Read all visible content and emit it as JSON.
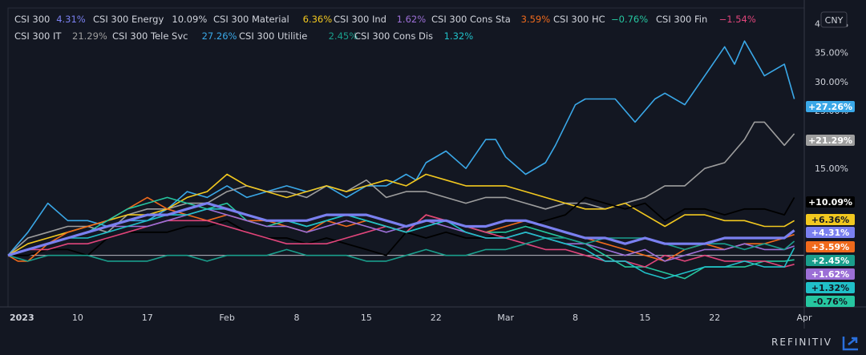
{
  "chart_data": {
    "type": "line",
    "currency_button": "CNY",
    "y_ticks": [
      40,
      35,
      30,
      25,
      20,
      15
    ],
    "y_tick_labels": [
      "40.00%",
      "35.00%",
      "30.00%",
      "25.00%",
      "20.00%",
      "15.00%"
    ],
    "ylim": [
      -8.9,
      42.7
    ],
    "x_ticks": [
      {
        "label": "2023",
        "x": 0,
        "bold": true
      },
      {
        "label": "10",
        "x": 7
      },
      {
        "label": "17",
        "x": 14
      },
      {
        "label": "Feb",
        "x": 22
      },
      {
        "label": "8",
        "x": 29
      },
      {
        "label": "15",
        "x": 36
      },
      {
        "label": "22",
        "x": 43
      },
      {
        "label": "Mar",
        "x": 50
      },
      {
        "label": "8",
        "x": 57
      },
      {
        "label": "15",
        "x": 64
      },
      {
        "label": "22",
        "x": 71
      },
      {
        "label": "Apr",
        "x": 80
      }
    ],
    "xlim": [
      0,
      80
    ],
    "legend": [
      {
        "name": "CSI 300",
        "value": "4.31%",
        "color": "#7a80f0"
      },
      {
        "name": "CSI 300 Energy",
        "value": "10.09%",
        "color": "#d1d4dc"
      },
      {
        "name": "CSI 300 Material",
        "value": "6.36%",
        "color": "#f2c81f"
      },
      {
        "name": "CSI 300 Ind",
        "value": "1.62%",
        "color": "#9c6fd6"
      },
      {
        "name": "CSI 300 Cons Sta",
        "value": "3.59%",
        "color": "#f06a1c"
      },
      {
        "name": "CSI 300 HC",
        "value": "−0.76%",
        "color": "#26c6a0"
      },
      {
        "name": "CSI 300 Fin",
        "value": "−1.54%",
        "color": "#e0457b"
      },
      {
        "name": "CSI 300 IT",
        "value": "21.29%",
        "color": "#9e9e9e"
      },
      {
        "name": "CSI 300 Tele Svc",
        "value": "27.26%",
        "color": "#3aa8e8"
      },
      {
        "name": "CSI 300 Utilitie",
        "value": "2.45%",
        "color": "#1a9e8c"
      },
      {
        "name": "CSI 300 Cons Dis",
        "value": "1.32%",
        "color": "#20c0c8"
      }
    ],
    "right_labels": [
      {
        "text": "+27.26%",
        "value": 27.26,
        "bg": "#3aa8e8",
        "fg": "#ffffff"
      },
      {
        "text": "+21.29%",
        "value": 21.29,
        "bg": "#9e9e9e",
        "fg": "#ffffff"
      },
      {
        "text": "+10.09%",
        "value": 10.09,
        "bg": "#000000",
        "fg": "#ffffff"
      },
      {
        "text": "+6.36%",
        "value": 6.36,
        "bg": "#f2c81f",
        "fg": "#131722"
      },
      {
        "text": "+4.31%",
        "value": 4.31,
        "bg": "#7a80f0",
        "fg": "#ffffff"
      },
      {
        "text": "+3.59%",
        "value": 3.59,
        "bg": "#f06a1c",
        "fg": "#ffffff"
      },
      {
        "text": "+2.45%",
        "value": 2.45,
        "bg": "#1a9e8c",
        "fg": "#ffffff"
      },
      {
        "text": "+1.62%",
        "value": 1.62,
        "bg": "#9c6fd6",
        "fg": "#ffffff"
      },
      {
        "text": "+1.32%",
        "value": 1.32,
        "bg": "#20c0c8",
        "fg": "#131722"
      },
      {
        "text": "-0.76%",
        "value": -0.76,
        "bg": "#26c6a0",
        "fg": "#131722"
      }
    ],
    "series": [
      {
        "name": "CSI 300 Tele Svc",
        "color": "#3aa8e8",
        "width": 1.6,
        "x": [
          0,
          2,
          4,
          6,
          8,
          10,
          12,
          14,
          16,
          18,
          20,
          22,
          24,
          26,
          28,
          30,
          32,
          34,
          36,
          38,
          40,
          41,
          42,
          44,
          46,
          48,
          49,
          50,
          52,
          54,
          55,
          57,
          58,
          60,
          61,
          63,
          65,
          66,
          68,
          70,
          72,
          73,
          74,
          76,
          78,
          79
        ],
        "values": [
          0,
          4,
          9,
          6,
          6,
          5,
          6,
          6,
          8,
          11,
          10,
          12,
          10,
          11,
          12,
          11,
          12,
          10,
          12,
          12,
          14,
          13,
          16,
          18,
          15,
          20,
          20,
          17,
          14,
          16,
          19,
          26,
          27,
          27,
          27,
          23,
          27,
          28,
          26,
          31,
          36,
          33,
          37,
          31,
          33,
          27
        ]
      },
      {
        "name": "CSI 300 IT",
        "color": "#9e9e9e",
        "width": 1.6,
        "x": [
          0,
          2,
          4,
          6,
          8,
          10,
          12,
          14,
          16,
          18,
          20,
          22,
          24,
          26,
          28,
          30,
          32,
          34,
          36,
          38,
          40,
          42,
          44,
          46,
          48,
          50,
          52,
          54,
          56,
          58,
          60,
          62,
          64,
          66,
          68,
          70,
          72,
          74,
          75,
          76,
          78,
          79
        ],
        "values": [
          0,
          3,
          4,
          5,
          5,
          4,
          7,
          8,
          8,
          9,
          9,
          11,
          12,
          11,
          11,
          10,
          12,
          11,
          13,
          10,
          11,
          11,
          10,
          9,
          10,
          10,
          9,
          8,
          9,
          9,
          8,
          9,
          10,
          12,
          12,
          15,
          16,
          20,
          23,
          23,
          19,
          21
        ],
        "force_last": 21.29
      },
      {
        "name": "CSI 300 Material",
        "color": "#f2c81f",
        "width": 1.6,
        "x": [
          0,
          2,
          4,
          6,
          8,
          10,
          12,
          14,
          16,
          18,
          20,
          22,
          24,
          26,
          28,
          30,
          32,
          34,
          36,
          38,
          40,
          42,
          44,
          46,
          48,
          50,
          52,
          54,
          56,
          58,
          60,
          62,
          64,
          66,
          68,
          70,
          72,
          74,
          76,
          78,
          79
        ],
        "values": [
          0,
          2,
          3,
          4,
          5,
          6,
          7,
          7,
          8,
          10,
          11,
          14,
          12,
          11,
          10,
          11,
          12,
          11,
          12,
          13,
          12,
          14,
          13,
          12,
          12,
          12,
          11,
          10,
          9,
          8,
          8,
          9,
          7,
          5,
          7,
          7,
          6,
          6,
          5,
          5,
          6
        ],
        "force_last": 6.36
      },
      {
        "name": "CSI 300 Energy",
        "color": "#000000",
        "width": 1.8,
        "x": [
          0,
          2,
          4,
          6,
          8,
          10,
          12,
          14,
          16,
          18,
          20,
          22,
          24,
          26,
          28,
          30,
          32,
          34,
          36,
          38,
          40,
          42,
          44,
          46,
          48,
          50,
          52,
          54,
          56,
          58,
          60,
          62,
          64,
          66,
          68,
          70,
          72,
          74,
          76,
          78,
          79
        ],
        "values": [
          0,
          0,
          1,
          1,
          0,
          3,
          4,
          4,
          4,
          5,
          5,
          6,
          4,
          3,
          3,
          2,
          3,
          2,
          1,
          0,
          4,
          3,
          4,
          3,
          3,
          4,
          5,
          6,
          7,
          10,
          9,
          8,
          9,
          6,
          8,
          8,
          7,
          8,
          8,
          7,
          10
        ],
        "force_last": 10.09
      },
      {
        "name": "CSI 300 Cons Sta",
        "color": "#f06a1c",
        "width": 1.6,
        "x": [
          0,
          1,
          2,
          4,
          6,
          8,
          10,
          12,
          14,
          16,
          18,
          20,
          22,
          24,
          26,
          28,
          30,
          32,
          34,
          36,
          38,
          40,
          42,
          44,
          46,
          48,
          50,
          52,
          54,
          56,
          58,
          60,
          62,
          64,
          66,
          68,
          70,
          72,
          74,
          76,
          78,
          79
        ],
        "values": [
          0,
          -1,
          -1,
          2,
          4,
          5,
          6,
          8,
          10,
          8,
          7,
          6,
          7,
          6,
          6,
          5,
          4,
          6,
          5,
          6,
          5,
          4,
          7,
          6,
          5,
          4,
          5,
          6,
          5,
          4,
          3,
          2,
          1,
          0,
          -1,
          1,
          2,
          1,
          2,
          2,
          3,
          3.6
        ]
      },
      {
        "name": "CSI 300 HC",
        "color": "#26c6a0",
        "width": 1.6,
        "x": [
          0,
          2,
          4,
          6,
          8,
          10,
          12,
          14,
          16,
          18,
          20,
          22,
          24,
          26,
          28,
          30,
          32,
          34,
          36,
          38,
          40,
          42,
          44,
          46,
          48,
          50,
          52,
          54,
          56,
          58,
          60,
          62,
          64,
          66,
          68,
          70,
          72,
          74,
          76,
          78,
          79
        ],
        "values": [
          0,
          1,
          2,
          3,
          4,
          6,
          8,
          9,
          10,
          9,
          8,
          9,
          6,
          5,
          6,
          5,
          6,
          7,
          6,
          5,
          4,
          5,
          6,
          5,
          4,
          4,
          5,
          4,
          3,
          2,
          0,
          -2,
          -2,
          -3,
          -4,
          -2,
          -2,
          -2,
          -1,
          -1,
          -0.76
        ]
      },
      {
        "name": "CSI 300 Fin",
        "color": "#e0457b",
        "width": 1.6,
        "x": [
          0,
          2,
          4,
          6,
          8,
          10,
          12,
          14,
          16,
          18,
          20,
          22,
          24,
          26,
          28,
          30,
          32,
          34,
          36,
          38,
          40,
          42,
          44,
          46,
          48,
          50,
          52,
          54,
          56,
          58,
          60,
          62,
          64,
          66,
          68,
          70,
          72,
          74,
          76,
          78,
          79
        ],
        "values": [
          0,
          1,
          1,
          2,
          2,
          3,
          4,
          5,
          6,
          6,
          6,
          5,
          4,
          3,
          2,
          2,
          2,
          3,
          4,
          5,
          4,
          7,
          6,
          5,
          4,
          3,
          2,
          1,
          1,
          0,
          -1,
          -1,
          -2,
          0,
          -1,
          0,
          -1,
          -1,
          -1,
          -2,
          -1.54
        ]
      },
      {
        "name": "CSI 300 Ind",
        "color": "#9c6fd6",
        "width": 1.6,
        "x": [
          0,
          2,
          4,
          6,
          8,
          10,
          12,
          14,
          16,
          18,
          20,
          22,
          24,
          26,
          28,
          30,
          32,
          34,
          36,
          38,
          40,
          42,
          44,
          46,
          48,
          50,
          52,
          54,
          56,
          58,
          60,
          62,
          64,
          66,
          68,
          70,
          72,
          74,
          76,
          78,
          79
        ],
        "values": [
          0,
          1,
          2,
          3,
          4,
          5,
          5,
          5,
          6,
          7,
          8,
          7,
          6,
          5,
          5,
          4,
          5,
          6,
          5,
          4,
          5,
          6,
          5,
          4,
          3,
          3,
          4,
          3,
          2,
          2,
          1,
          0,
          1,
          -1,
          0,
          1,
          1,
          2,
          1,
          1,
          1.62
        ]
      },
      {
        "name": "CSI 300 Utilitie",
        "color": "#1a9e8c",
        "width": 1.6,
        "x": [
          0,
          2,
          4,
          6,
          8,
          10,
          12,
          14,
          16,
          18,
          20,
          22,
          24,
          26,
          28,
          30,
          32,
          34,
          36,
          38,
          40,
          42,
          44,
          46,
          48,
          50,
          52,
          54,
          56,
          58,
          60,
          62,
          64,
          66,
          68,
          70,
          72,
          74,
          76,
          78,
          79
        ],
        "values": [
          0,
          -1,
          0,
          0,
          0,
          -1,
          -1,
          -1,
          0,
          0,
          -1,
          0,
          0,
          0,
          1,
          0,
          0,
          0,
          -1,
          -1,
          0,
          1,
          0,
          0,
          1,
          1,
          2,
          3,
          3,
          2,
          3,
          3,
          3,
          2,
          1,
          2,
          2,
          1,
          2,
          1,
          2.45
        ]
      },
      {
        "name": "CSI 300 Cons Dis",
        "color": "#20c0c8",
        "width": 1.6,
        "x": [
          0,
          2,
          4,
          6,
          8,
          10,
          12,
          14,
          16,
          18,
          20,
          22,
          24,
          26,
          28,
          30,
          32,
          34,
          36,
          38,
          40,
          42,
          44,
          46,
          48,
          50,
          52,
          54,
          56,
          58,
          60,
          62,
          64,
          66,
          68,
          70,
          72,
          74,
          76,
          78,
          79
        ],
        "values": [
          0,
          1,
          2,
          3,
          3,
          4,
          5,
          6,
          7,
          7,
          8,
          8,
          7,
          6,
          6,
          5,
          6,
          7,
          6,
          5,
          4,
          5,
          6,
          4,
          3,
          3,
          4,
          3,
          2,
          1,
          -1,
          -1,
          -3,
          -4,
          -3,
          -2,
          -2,
          -1,
          -2,
          -2,
          1.32
        ]
      },
      {
        "name": "CSI 300",
        "color": "#7a80f0",
        "width": 3.2,
        "x": [
          0,
          2,
          4,
          6,
          8,
          10,
          12,
          14,
          16,
          18,
          20,
          22,
          24,
          26,
          28,
          30,
          32,
          34,
          36,
          38,
          40,
          42,
          44,
          46,
          48,
          50,
          52,
          54,
          56,
          58,
          60,
          62,
          64,
          66,
          68,
          70,
          72,
          74,
          76,
          78,
          79
        ],
        "values": [
          0,
          1,
          2,
          3,
          4,
          5,
          6,
          7,
          7,
          8,
          9,
          8,
          7,
          6,
          6,
          6,
          7,
          7,
          7,
          6,
          5,
          6,
          6,
          5,
          5,
          6,
          6,
          5,
          4,
          3,
          3,
          2,
          3,
          2,
          2,
          2,
          3,
          3,
          3,
          3,
          4.31
        ]
      }
    ]
  },
  "branding": {
    "footer": "REFINITIV"
  }
}
